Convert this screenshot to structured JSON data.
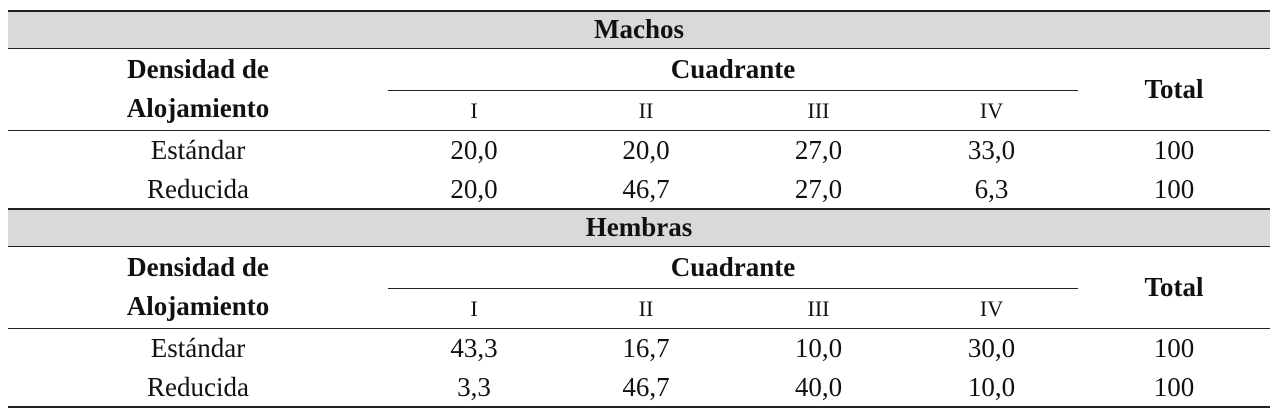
{
  "column_headers": {
    "row_label": "Densidad de Alojamiento",
    "group_label": "Cuadrante",
    "quadrants": [
      "I",
      "II",
      "III",
      "IV"
    ],
    "total": "Total"
  },
  "sections": [
    {
      "title": "Machos",
      "rows": [
        {
          "label": "Estándar",
          "values": [
            "20,0",
            "20,0",
            "27,0",
            "33,0"
          ],
          "total": "100"
        },
        {
          "label": "Reducida",
          "values": [
            "20,0",
            "46,7",
            "27,0",
            "6,3"
          ],
          "total": "100"
        }
      ]
    },
    {
      "title": "Hembras",
      "rows": [
        {
          "label": "Estándar",
          "values": [
            "43,3",
            "16,7",
            "10,0",
            "30,0"
          ],
          "total": "100"
        },
        {
          "label": "Reducida",
          "values": [
            "3,3",
            "46,7",
            "40,0",
            "10,0"
          ],
          "total": "100"
        }
      ]
    }
  ]
}
